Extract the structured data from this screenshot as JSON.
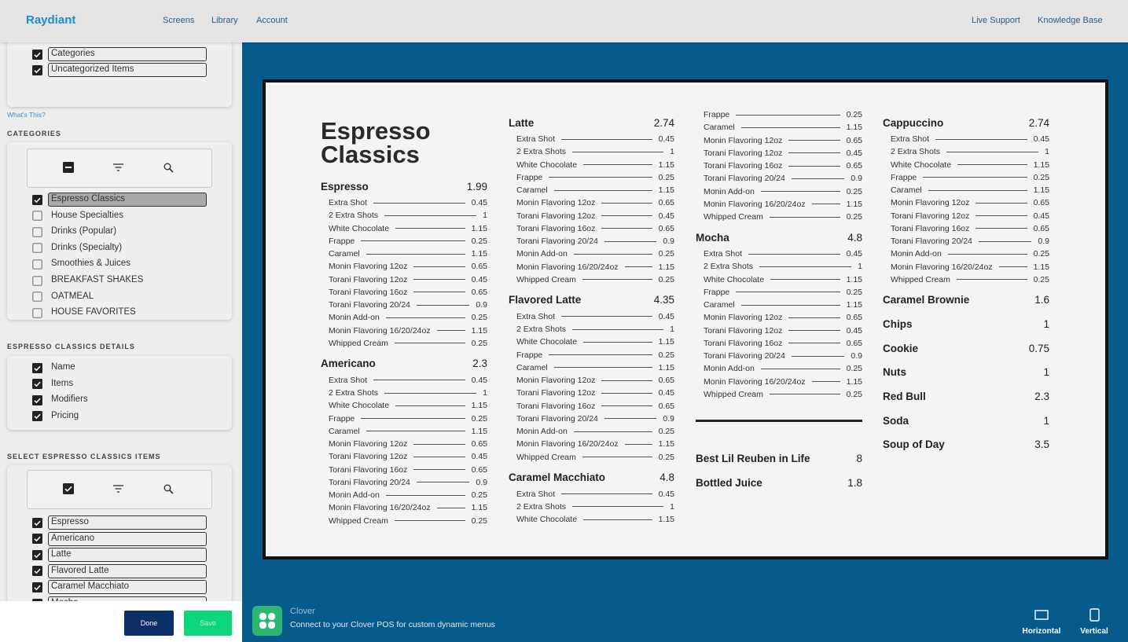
{
  "nav": {
    "brand": "Raydiant",
    "links": [
      "Screens",
      "Library",
      "Account"
    ],
    "right_links": [
      "Live Support",
      "Knowledge Base"
    ]
  },
  "sidebar": {
    "top_items": [
      {
        "label": "Categories",
        "checked": true
      },
      {
        "label": "Uncategorized Items",
        "checked": true
      }
    ],
    "whats_this": "What's This?",
    "categories": {
      "title": "CATEGORIES",
      "items": [
        {
          "label": "Espresso Classics",
          "checked": true,
          "selected": true
        },
        {
          "label": "House Specialties",
          "checked": false
        },
        {
          "label": "Drinks (Popular)",
          "checked": false
        },
        {
          "label": "Drinks (Specialty)",
          "checked": false
        },
        {
          "label": "Smoothies & Juices",
          "checked": false
        },
        {
          "label": "BREAKFAST SHAKES",
          "checked": false
        },
        {
          "label": "OATMEAL",
          "checked": false
        },
        {
          "label": "HOUSE FAVORITES",
          "checked": false
        }
      ]
    },
    "details": {
      "title": "ESPRESSO CLASSICS DETAILS",
      "items": [
        {
          "label": "Name",
          "checked": true
        },
        {
          "label": "Items",
          "checked": true
        },
        {
          "label": "Modifiers",
          "checked": true
        },
        {
          "label": "Pricing",
          "checked": true
        }
      ]
    },
    "select_items": {
      "title": "SELECT ESPRESSO CLASSICS ITEMS",
      "items": [
        {
          "label": "Espresso",
          "checked": true
        },
        {
          "label": "Americano",
          "checked": true
        },
        {
          "label": "Latte",
          "checked": true
        },
        {
          "label": "Flavored Latte",
          "checked": true
        },
        {
          "label": "Caramel Macchiato",
          "checked": true
        },
        {
          "label": "Mocha",
          "checked": true
        }
      ]
    },
    "buttons": {
      "done": "Done",
      "save": "Save"
    }
  },
  "menu": {
    "title": "Espresso Classics",
    "columns": [
      {
        "items": [
          {
            "name": "Espresso",
            "price": "1.99",
            "modifiers": [
              [
                "Extra Shot",
                "0.45"
              ],
              [
                "2 Extra Shots",
                "1"
              ],
              [
                "White Chocolate",
                "1.15"
              ],
              [
                "Frappe",
                "0.25"
              ],
              [
                "Caramel",
                "1.15"
              ],
              [
                "Monin Flavoring 12oz",
                "0.65"
              ],
              [
                "Torani Flavoring 12oz",
                "0.45"
              ],
              [
                "Torani Flavoring 16oz",
                "0.65"
              ],
              [
                "Torani Flavoring 20/24",
                "0.9"
              ],
              [
                "Monin Add-on",
                "0.25"
              ],
              [
                "Monin Flavoring 16/20/24oz",
                "1.15"
              ],
              [
                "Whipped Cream",
                "0.25"
              ]
            ]
          },
          {
            "name": "Americano",
            "price": "2.3",
            "modifiers": [
              [
                "Extra Shot",
                "0.45"
              ],
              [
                "2 Extra Shots",
                "1"
              ],
              [
                "White Chocolate",
                "1.15"
              ],
              [
                "Frappe",
                "0.25"
              ],
              [
                "Caramel",
                "1.15"
              ],
              [
                "Monin Flavoring 12oz",
                "0.65"
              ],
              [
                "Torani Flavoring 12oz",
                "0.45"
              ],
              [
                "Torani Flavoring 16oz",
                "0.65"
              ],
              [
                "Torani Flavoring 20/24",
                "0.9"
              ],
              [
                "Monin Add-on",
                "0.25"
              ],
              [
                "Monin Flavoring 16/20/24oz",
                "1.15"
              ],
              [
                "Whipped Cream",
                "0.25"
              ]
            ]
          }
        ]
      },
      {
        "items": [
          {
            "name": "Latte",
            "price": "2.74",
            "modifiers": [
              [
                "Extra Shot",
                "0.45"
              ],
              [
                "2 Extra Shots",
                "1"
              ],
              [
                "White Chocolate",
                "1.15"
              ],
              [
                "Frappe",
                "0.25"
              ],
              [
                "Caramel",
                "1.15"
              ],
              [
                "Monin Flavoring 12oz",
                "0.65"
              ],
              [
                "Torani Flavoring 12oz",
                "0.45"
              ],
              [
                "Torani Flavoring 16oz",
                "0.65"
              ],
              [
                "Torani Flavoring 20/24",
                "0.9"
              ],
              [
                "Monin Add-on",
                "0.25"
              ],
              [
                "Monin Flavoring 16/20/24oz",
                "1.15"
              ],
              [
                "Whipped Cream",
                "0.25"
              ]
            ]
          },
          {
            "name": "Flavored Latte",
            "price": "4.35",
            "modifiers": [
              [
                "Extra Shot",
                "0.45"
              ],
              [
                "2 Extra Shots",
                "1"
              ],
              [
                "White Chocolate",
                "1.15"
              ],
              [
                "Frappe",
                "0.25"
              ],
              [
                "Caramel",
                "1.15"
              ],
              [
                "Monin Flavoring 12oz",
                "0.65"
              ],
              [
                "Torani Flavoring 12oz",
                "0.45"
              ],
              [
                "Torani Flavoring 16oz",
                "0.65"
              ],
              [
                "Torani Flavoring 20/24",
                "0.9"
              ],
              [
                "Monin Add-on",
                "0.25"
              ],
              [
                "Monin Flavoring 16/20/24oz",
                "1.15"
              ],
              [
                "Whipped Cream",
                "0.25"
              ]
            ]
          },
          {
            "name": "Caramel Macchiato",
            "price": "4.8",
            "modifiers": [
              [
                "Extra Shot",
                "0.45"
              ],
              [
                "2 Extra Shots",
                "1"
              ],
              [
                "White Chocolate",
                "1.15"
              ]
            ]
          }
        ]
      },
      {
        "items": [
          {
            "modifiers": [
              [
                "Frappe",
                "0.25"
              ],
              [
                "Caramel",
                "1.15"
              ],
              [
                "Monin Flavoring 12oz",
                "0.65"
              ],
              [
                "Torani Flavoring 12oz",
                "0.45"
              ],
              [
                "Torani Flavoring 16oz",
                "0.65"
              ],
              [
                "Torani Flavoring 20/24",
                "0.9"
              ],
              [
                "Monin Add-on",
                "0.25"
              ],
              [
                "Monin Flavoring 16/20/24oz",
                "1.15"
              ],
              [
                "Whipped Cream",
                "0.25"
              ]
            ]
          },
          {
            "name": "Mocha",
            "price": "4.8",
            "modifiers": [
              [
                "Extra Shot",
                "0.45"
              ],
              [
                "2 Extra Shots",
                "1"
              ],
              [
                "White Chocolate",
                "1.15"
              ],
              [
                "Frappe",
                "0.25"
              ],
              [
                "Caramel",
                "1.15"
              ],
              [
                "Monin Flavoring 12oz",
                "0.65"
              ],
              [
                "Torani Flavoring 12oz",
                "0.45"
              ],
              [
                "Torani Flavoring 16oz",
                "0.65"
              ],
              [
                "Torani Flavoring 20/24",
                "0.9"
              ],
              [
                "Monin Add-on",
                "0.25"
              ],
              [
                "Monin Flavoring 16/20/24oz",
                "1.15"
              ],
              [
                "Whipped Cream",
                "0.25"
              ]
            ]
          }
        ],
        "divider": true,
        "extras": [
          {
            "name": "Best Lil Reuben in Life",
            "price": "8"
          },
          {
            "name": "Bottled Juice",
            "price": "1.8"
          }
        ]
      },
      {
        "items": [
          {
            "name": "Cappuccino",
            "price": "2.74",
            "modifiers": [
              [
                "Extra Shot",
                "0.45"
              ],
              [
                "2 Extra Shots",
                "1"
              ],
              [
                "White Chocolate",
                "1.15"
              ],
              [
                "Frappe",
                "0.25"
              ],
              [
                "Caramel",
                "1.15"
              ],
              [
                "Monin Flavoring 12oz",
                "0.65"
              ],
              [
                "Torani Flavoring 12oz",
                "0.45"
              ],
              [
                "Torani Flavoring 16oz",
                "0.65"
              ],
              [
                "Torani Flavoring 20/24",
                "0.9"
              ],
              [
                "Monin Add-on",
                "0.25"
              ],
              [
                "Monin Flavoring 16/20/24oz",
                "1.15"
              ],
              [
                "Whipped Cream",
                "0.25"
              ]
            ]
          }
        ],
        "extras": [
          {
            "name": "Caramel Brownie",
            "price": "1.6"
          },
          {
            "name": "Chips",
            "price": "1"
          },
          {
            "name": "Cookie",
            "price": "0.75"
          },
          {
            "name": "Nuts",
            "price": "1"
          },
          {
            "name": "Red Bull",
            "price": "2.3"
          },
          {
            "name": "Soda",
            "price": "1"
          },
          {
            "name": "Soup of Day",
            "price": "3.5"
          }
        ]
      }
    ]
  },
  "integration": {
    "name": "Clover",
    "description": "Connect to your Clover POS for custom dynamic menus"
  },
  "orientation": [
    "Horizontal",
    "Vertical"
  ]
}
